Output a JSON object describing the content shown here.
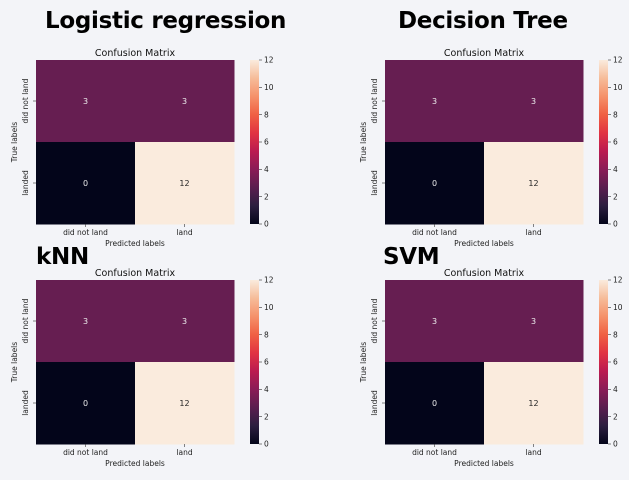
{
  "chart_data": [
    {
      "type": "heatmap",
      "heading": "Logistic regression",
      "title": "Confusion Matrix",
      "xlabel": "Predicted labels",
      "ylabel": "True labels",
      "x_categories": [
        "did not land",
        "land"
      ],
      "y_categories": [
        "did not land",
        "landed"
      ],
      "values": [
        [
          3,
          3
        ],
        [
          0,
          12
        ]
      ],
      "colorbar": {
        "min": 0,
        "max": 12,
        "ticks": [
          0,
          2,
          4,
          6,
          8,
          10,
          12
        ]
      }
    },
    {
      "type": "heatmap",
      "heading": "Decision Tree",
      "title": "Confusion Matrix",
      "xlabel": "Predicted labels",
      "ylabel": "True labels",
      "x_categories": [
        "did not land",
        "land"
      ],
      "y_categories": [
        "did not land",
        "landed"
      ],
      "values": [
        [
          3,
          3
        ],
        [
          0,
          12
        ]
      ],
      "colorbar": {
        "min": 0,
        "max": 12,
        "ticks": [
          0,
          2,
          4,
          6,
          8,
          10,
          12
        ]
      }
    },
    {
      "type": "heatmap",
      "heading": "kNN",
      "title": "Confusion Matrix",
      "xlabel": "Predicted labels",
      "ylabel": "True labels",
      "x_categories": [
        "did not land",
        "land"
      ],
      "y_categories": [
        "did not land",
        "landed"
      ],
      "values": [
        [
          3,
          3
        ],
        [
          0,
          12
        ]
      ],
      "colorbar": {
        "min": 0,
        "max": 12,
        "ticks": [
          0,
          2,
          4,
          6,
          8,
          10,
          12
        ]
      }
    },
    {
      "type": "heatmap",
      "heading": "SVM",
      "title": "Confusion Matrix",
      "xlabel": "Predicted labels",
      "ylabel": "True labels",
      "x_categories": [
        "did not land",
        "land"
      ],
      "y_categories": [
        "did not land",
        "landed"
      ],
      "values": [
        [
          3,
          3
        ],
        [
          0,
          12
        ]
      ],
      "colorbar": {
        "min": 0,
        "max": 12,
        "ticks": [
          0,
          2,
          4,
          6,
          8,
          10,
          12
        ]
      }
    }
  ],
  "colors": {
    "colormap": [
      "#03051a",
      "#2c1e3f",
      "#5a1e4f",
      "#8a1c56",
      "#bb1b50",
      "#e13342",
      "#f06043",
      "#f5916a",
      "#f6bc99",
      "#faebdd"
    ]
  }
}
